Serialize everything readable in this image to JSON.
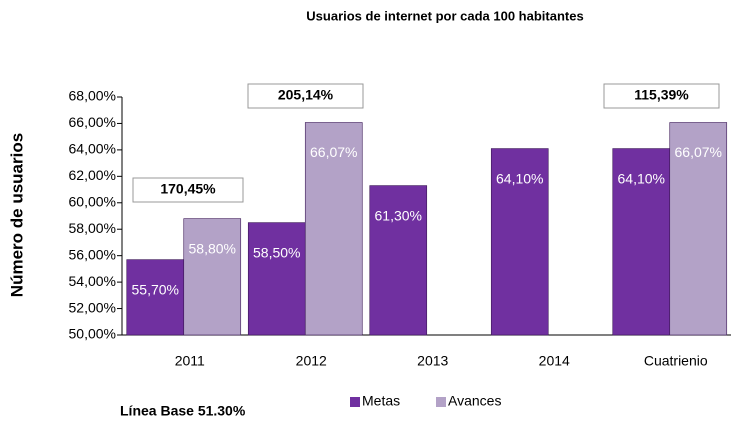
{
  "chart_data": {
    "type": "bar",
    "title": "Usuarios de internet por cada 100 habitantes",
    "y_label": "Número de usuarios",
    "note": "Línea Base 51.30%",
    "categories": [
      "2011",
      "2012",
      "2013",
      "2014",
      "Cuatrienio"
    ],
    "series": [
      {
        "name": "Metas",
        "color": "#7030a0",
        "values": [
          55.7,
          58.5,
          61.3,
          64.1,
          64.1
        ],
        "value_labels": [
          "55,70%",
          "58,50%",
          "61,30%",
          "64,10%",
          "64,10%"
        ]
      },
      {
        "name": "Avances",
        "color": "#b3a2c7",
        "values": [
          58.8,
          66.07,
          null,
          null,
          66.07
        ],
        "value_labels": [
          "58,80%",
          "66,07%",
          null,
          null,
          "66,07%"
        ]
      }
    ],
    "annotations": [
      "170,45%",
      "205,14%",
      "115,39%"
    ],
    "ylim": [
      50,
      68
    ],
    "yticks": [
      {
        "value": 50,
        "label": "50,00%"
      },
      {
        "value": 52,
        "label": "52,00%"
      },
      {
        "value": 54,
        "label": "54,00%"
      },
      {
        "value": 56,
        "label": "56,00%"
      },
      {
        "value": 58,
        "label": "58,00%"
      },
      {
        "value": 60,
        "label": "60,00%"
      },
      {
        "value": 62,
        "label": "62,00%"
      },
      {
        "value": 64,
        "label": "64,00%"
      },
      {
        "value": 66,
        "label": "66,00%"
      },
      {
        "value": 68,
        "label": "68,00%"
      }
    ],
    "grid": false,
    "legend": "bottom"
  }
}
